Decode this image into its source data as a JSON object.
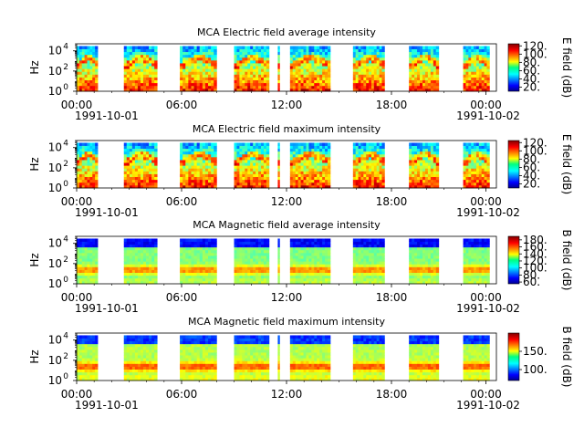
{
  "chart_data": [
    {
      "type": "heatmap",
      "title": "MCA  Electric field average intensity",
      "ylabel": "Hz",
      "yscale": "log",
      "ylim": [
        1,
        50000
      ],
      "ytick_labels": [
        {
          "value": 1,
          "base": "10",
          "exp": "0"
        },
        {
          "value": 100,
          "base": "10",
          "exp": "2"
        },
        {
          "value": 10000,
          "base": "10",
          "exp": "4"
        }
      ],
      "x_tick_labels": [
        "00:00",
        "06:00",
        "12:00",
        "18:00",
        "00:00"
      ],
      "x_dates": [
        "1991-10-01",
        "1991-10-02"
      ],
      "colorbar": {
        "label": "E field (dB)",
        "range": [
          10,
          125
        ],
        "ticks": [
          20,
          40,
          60,
          80,
          100,
          120
        ],
        "tick_labels": [
          "20.",
          "40.",
          "60.",
          "80.",
          "100.",
          "120."
        ]
      },
      "segments_hours": [
        [
          0.0,
          1.2
        ],
        [
          2.7,
          4.6
        ],
        [
          5.9,
          8.0
        ],
        [
          9.0,
          11.0
        ],
        [
          11.5,
          11.6
        ],
        [
          12.2,
          14.5
        ],
        [
          15.8,
          17.6
        ],
        [
          19.0,
          20.7
        ],
        [
          22.1,
          23.6
        ]
      ],
      "field": "electric"
    },
    {
      "type": "heatmap",
      "title": "MCA  Electric field maximum intensity",
      "ylabel": "Hz",
      "yscale": "log",
      "ylim": [
        1,
        50000
      ],
      "ytick_labels": [
        {
          "value": 1,
          "base": "10",
          "exp": "0"
        },
        {
          "value": 100,
          "base": "10",
          "exp": "2"
        },
        {
          "value": 10000,
          "base": "10",
          "exp": "4"
        }
      ],
      "x_tick_labels": [
        "00:00",
        "06:00",
        "12:00",
        "18:00",
        "00:00"
      ],
      "x_dates": [
        "1991-10-01",
        "1991-10-02"
      ],
      "colorbar": {
        "label": "E field (dB)",
        "range": [
          10,
          125
        ],
        "ticks": [
          20,
          40,
          60,
          80,
          100,
          120
        ],
        "tick_labels": [
          "20.",
          "40.",
          "60.",
          "80.",
          "100.",
          "120."
        ]
      },
      "segments_hours": [
        [
          0.0,
          1.2
        ],
        [
          2.7,
          4.6
        ],
        [
          5.9,
          8.0
        ],
        [
          9.0,
          11.0
        ],
        [
          11.5,
          11.6
        ],
        [
          12.2,
          14.5
        ],
        [
          15.8,
          17.6
        ],
        [
          19.0,
          20.7
        ],
        [
          22.1,
          23.6
        ]
      ],
      "field": "electric"
    },
    {
      "type": "heatmap",
      "title": "MCA  Magnetic field average intensity",
      "ylabel": "Hz",
      "yscale": "log",
      "ylim": [
        1,
        50000
      ],
      "ytick_labels": [
        {
          "value": 1,
          "base": "10",
          "exp": "0"
        },
        {
          "value": 100,
          "base": "10",
          "exp": "2"
        },
        {
          "value": 10000,
          "base": "10",
          "exp": "4"
        }
      ],
      "x_tick_labels": [
        "00:00",
        "06:00",
        "12:00",
        "18:00",
        "00:00"
      ],
      "x_dates": [
        "1991-10-01",
        "1991-10-02"
      ],
      "colorbar": {
        "label": "B field (dB)",
        "range": [
          55,
          190
        ],
        "ticks": [
          60,
          80,
          100,
          120,
          140,
          160,
          180
        ],
        "tick_labels": [
          "60.",
          "80.",
          "100.",
          "120.",
          "140.",
          "160.",
          "180."
        ]
      },
      "segments_hours": [
        [
          0.0,
          1.2
        ],
        [
          2.7,
          4.6
        ],
        [
          5.9,
          8.0
        ],
        [
          9.0,
          11.0
        ],
        [
          11.5,
          11.6
        ],
        [
          12.2,
          14.5
        ],
        [
          15.8,
          17.6
        ],
        [
          19.0,
          20.7
        ],
        [
          22.1,
          23.6
        ]
      ],
      "field": "magnetic"
    },
    {
      "type": "heatmap",
      "title": "MCA  Magnetic field maximum intensity",
      "ylabel": "Hz",
      "yscale": "log",
      "ylim": [
        1,
        50000
      ],
      "ytick_labels": [
        {
          "value": 1,
          "base": "10",
          "exp": "0"
        },
        {
          "value": 100,
          "base": "10",
          "exp": "2"
        },
        {
          "value": 10000,
          "base": "10",
          "exp": "4"
        }
      ],
      "x_tick_labels": [
        "00:00",
        "06:00",
        "12:00",
        "18:00",
        "00:00"
      ],
      "x_dates": [
        "1991-10-01",
        "1991-10-02"
      ],
      "colorbar": {
        "label": "B field (dB)",
        "range": [
          70,
          200
        ],
        "ticks": [
          100,
          150
        ],
        "tick_labels": [
          "100.",
          "150."
        ]
      },
      "segments_hours": [
        [
          0.0,
          1.2
        ],
        [
          2.7,
          4.6
        ],
        [
          5.9,
          8.0
        ],
        [
          9.0,
          11.0
        ],
        [
          11.5,
          11.6
        ],
        [
          12.2,
          14.5
        ],
        [
          15.8,
          17.6
        ],
        [
          19.0,
          20.7
        ],
        [
          22.1,
          23.6
        ]
      ],
      "field": "magnetic"
    }
  ]
}
